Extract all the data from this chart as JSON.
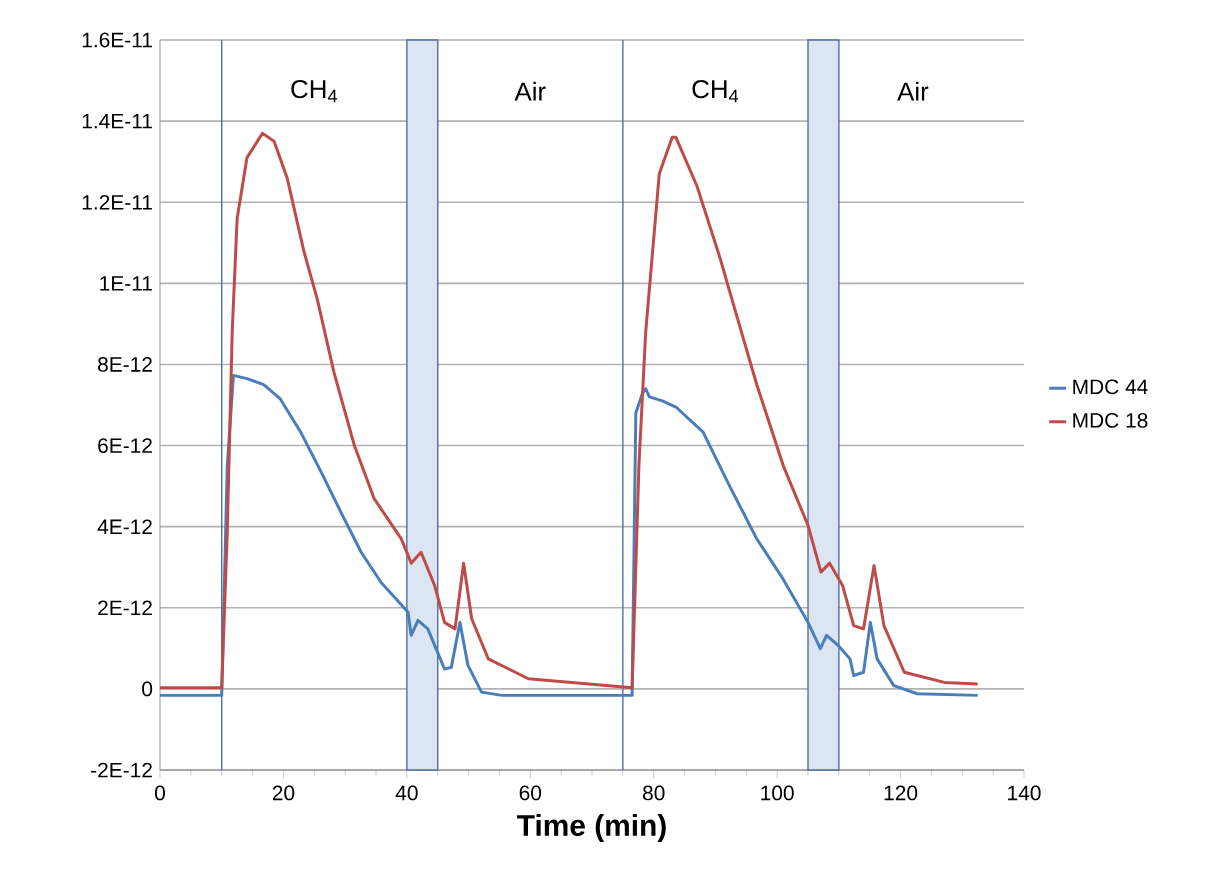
{
  "chart_data": {
    "type": "line",
    "xlabel": "Time (min)",
    "xlim": [
      0,
      140
    ],
    "xticks": [
      0,
      20,
      40,
      60,
      80,
      100,
      120,
      140
    ],
    "ylim": [
      -2e-12,
      1.6e-11
    ],
    "yticks": [
      {
        "value": -2e-12,
        "label": "-2E-12"
      },
      0,
      {
        "value": 2e-12,
        "label": "2E-12"
      },
      {
        "value": 4e-12,
        "label": "4E-12"
      },
      {
        "value": 6e-12,
        "label": "6E-12"
      },
      {
        "value": 8e-12,
        "label": "8E-12"
      },
      {
        "value": 1e-11,
        "label": "1E-11"
      },
      {
        "value": 1.2e-11,
        "label": "1.2E-11"
      },
      {
        "value": 1.4e-11,
        "label": "1.4E-11"
      },
      {
        "value": 1.6e-11,
        "label": "1.6E-11"
      }
    ],
    "grid": "y",
    "legend": "right",
    "line_style": "solid",
    "marker": "none",
    "series": [
      {
        "name": "MDC 44",
        "color": "#4a7ebb",
        "x": [
          0,
          10,
          10.9,
          11.9,
          14.1,
          16.8,
          19.5,
          22.8,
          26.1,
          29.3,
          32.6,
          35.8,
          40.2,
          40.7,
          41.8,
          43.4,
          46.1,
          47.2,
          48.6,
          49.9,
          52.1,
          55.4,
          76.5,
          77.1,
          78.2,
          78.7,
          79.3,
          81.4,
          83.6,
          88,
          92.3,
          96.7,
          101,
          105,
          107,
          108,
          109.9,
          111.8,
          112.4,
          114,
          115.1,
          116.2,
          118.9,
          122.7,
          132.5
        ],
        "values": [
          -1.6e-13,
          -1.6e-13,
          5.5e-12,
          7.73e-12,
          7.65e-12,
          7.5e-12,
          7.15e-12,
          6.33e-12,
          5.35e-12,
          4.36e-12,
          3.37e-12,
          2.63e-12,
          1.89e-12,
          1.32e-12,
          1.69e-12,
          1.48e-12,
          4.9e-13,
          5.3e-13,
          1.64e-12,
          5.8e-13,
          -8e-14,
          -1.6e-13,
          -1.6e-13,
          6.8e-12,
          7.3e-12,
          7.4e-12,
          7.2e-12,
          7.1e-12,
          6.95e-12,
          6.33e-12,
          5e-12,
          3.7e-12,
          2.7e-12,
          1.64e-12,
          9.9e-13,
          1.32e-12,
          1.07e-12,
          7.4e-13,
          3.3e-13,
          4.1e-13,
          1.64e-12,
          7.4e-13,
          8e-14,
          -1.2e-13,
          -1.6e-13
        ]
      },
      {
        "name": "MDC 18",
        "color": "#be4b48",
        "x": [
          0,
          10,
          10.9,
          11.7,
          12.5,
          14.1,
          16.6,
          18.5,
          20.6,
          23.3,
          25.5,
          28.2,
          31.5,
          34.7,
          39.1,
          40.7,
          42.3,
          44.5,
          46.1,
          47.8,
          49.2,
          50.5,
          53.2,
          59.7,
          76.5,
          77.6,
          78.7,
          80.9,
          83,
          83.6,
          87,
          90.8,
          92.3,
          96.7,
          101,
          105,
          107.1,
          108.5,
          110.6,
          112.4,
          114,
          115.7,
          117.3,
          120.6,
          127.1,
          132.5
        ],
        "values": [
          3e-14,
          3e-14,
          3.87e-12,
          8.8e-12,
          1.16e-11,
          1.31e-11,
          1.37e-11,
          1.35e-11,
          1.26e-11,
          1.08e-11,
          9.6e-12,
          7.8e-12,
          6e-12,
          4.69e-12,
          3.7e-12,
          3.1e-12,
          3.37e-12,
          2.55e-12,
          1.64e-12,
          1.48e-12,
          3.1e-12,
          1.73e-12,
          7.4e-13,
          2.5e-13,
          3e-14,
          5.5e-12,
          8.8e-12,
          1.27e-11,
          1.36e-11,
          1.36e-11,
          1.24e-11,
          1.06e-11,
          9.8e-12,
          7.5e-12,
          5.5e-12,
          4.03e-12,
          2.88e-12,
          3.1e-12,
          2.55e-12,
          1.56e-12,
          1.48e-12,
          3.04e-12,
          1.56e-12,
          4.1e-13,
          1.6e-13,
          1.2e-13
        ]
      }
    ],
    "ref_lines": [
      {
        "axis": "x",
        "value": 10,
        "color": "#4f6fa0"
      },
      {
        "axis": "x",
        "value": 75,
        "color": "#4f6fa0"
      }
    ],
    "bands": [
      {
        "axis": "x",
        "from": 40,
        "to": 45,
        "color": "#dce6f2"
      },
      {
        "axis": "x",
        "from": 105,
        "to": 110,
        "color": "#dce6f2"
      }
    ],
    "annotations": [
      "CH$_{4}$",
      "Air",
      "CH$_{4}$",
      "Air"
    ]
  }
}
